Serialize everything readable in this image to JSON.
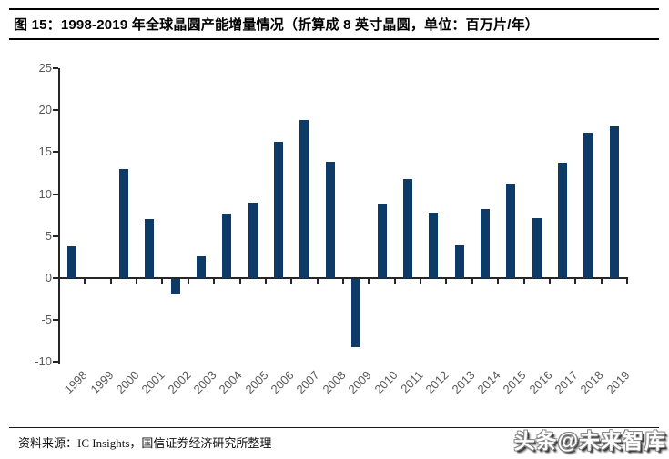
{
  "figure": {
    "title": "图 15：1998-2019 年全球晶圆产能增量情况（折算成 8 英寸晶圆，单位：百万片/年）"
  },
  "chart_data": {
    "type": "bar",
    "title": "",
    "xlabel": "",
    "ylabel": "",
    "categories": [
      "1998",
      "1999",
      "2000",
      "2001",
      "2002",
      "2003",
      "2004",
      "2005",
      "2006",
      "2007",
      "2008",
      "2009",
      "2010",
      "2011",
      "2012",
      "2013",
      "2014",
      "2015",
      "2016",
      "2017",
      "2018",
      "2019"
    ],
    "values": [
      3.8,
      0,
      13.0,
      7.0,
      -1.8,
      2.6,
      7.7,
      9.0,
      16.2,
      18.8,
      13.9,
      -8.1,
      8.9,
      11.8,
      7.8,
      3.9,
      8.2,
      11.3,
      7.2,
      13.7,
      17.3,
      18.1
    ],
    "ylim": [
      -10,
      25
    ],
    "yticks": [
      25,
      20,
      15,
      10,
      5,
      0,
      -5,
      -10
    ],
    "grid": false,
    "legend_position": "none",
    "bar_color": "#0E3A68",
    "axis_color": "#262626",
    "tick_label_color": "#595959"
  },
  "footer": {
    "source": "资料来源：IC Insights，国信证券经济研究所整理",
    "watermark": "头条@未来智库"
  }
}
